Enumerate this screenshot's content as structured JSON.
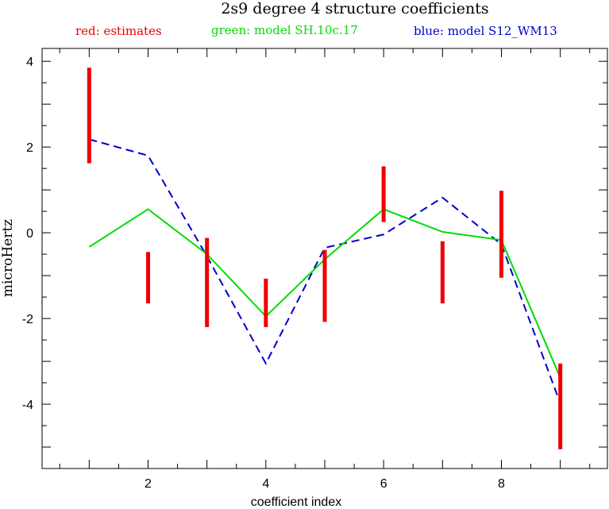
{
  "chart_data": {
    "type": "line",
    "title": "2s9 degree 4 structure coefficients",
    "xlabel": "coefficient index",
    "ylabel": "microHertz",
    "xlim": [
      0.2,
      9.8
    ],
    "ylim": [
      -5.5,
      4.3
    ],
    "x_ticks": [
      2,
      4,
      6,
      8
    ],
    "y_ticks": [
      4,
      2,
      0,
      -2,
      -4
    ],
    "legend": [
      {
        "label": "red: estimates",
        "color": "#ee0000"
      },
      {
        "label": "green: model SH.10c.17",
        "color": "#00dd00"
      },
      {
        "label": "blue: model S12_WM13",
        "color": "#0000cc"
      }
    ],
    "estimates": {
      "name": "red: estimates",
      "color": "#ee0000",
      "x": [
        1,
        2,
        3,
        4,
        5,
        6,
        7,
        8,
        9
      ],
      "low": [
        1.62,
        -1.65,
        -2.2,
        -2.2,
        -2.08,
        0.25,
        -1.65,
        -1.05,
        -5.05
      ],
      "high": [
        3.85,
        -0.45,
        -0.12,
        -1.07,
        -0.4,
        1.55,
        -0.2,
        0.98,
        -3.05
      ]
    },
    "series": [
      {
        "name": "green: model SH.10c.17",
        "color": "#00dd00",
        "style": "solid",
        "x": [
          1,
          2,
          3,
          4,
          5,
          6,
          7,
          8,
          9
        ],
        "values": [
          -0.33,
          0.55,
          -0.5,
          -1.95,
          -0.62,
          0.55,
          0.02,
          -0.17,
          -3.38
        ]
      },
      {
        "name": "blue: model S12_WM13",
        "color": "#0000cc",
        "style": "dashed",
        "x": [
          1,
          2,
          3,
          4,
          5,
          6,
          7,
          8,
          9
        ],
        "values": [
          2.18,
          1.8,
          -0.55,
          -3.05,
          -0.35,
          -0.04,
          0.82,
          -0.27,
          -3.98
        ]
      }
    ]
  }
}
